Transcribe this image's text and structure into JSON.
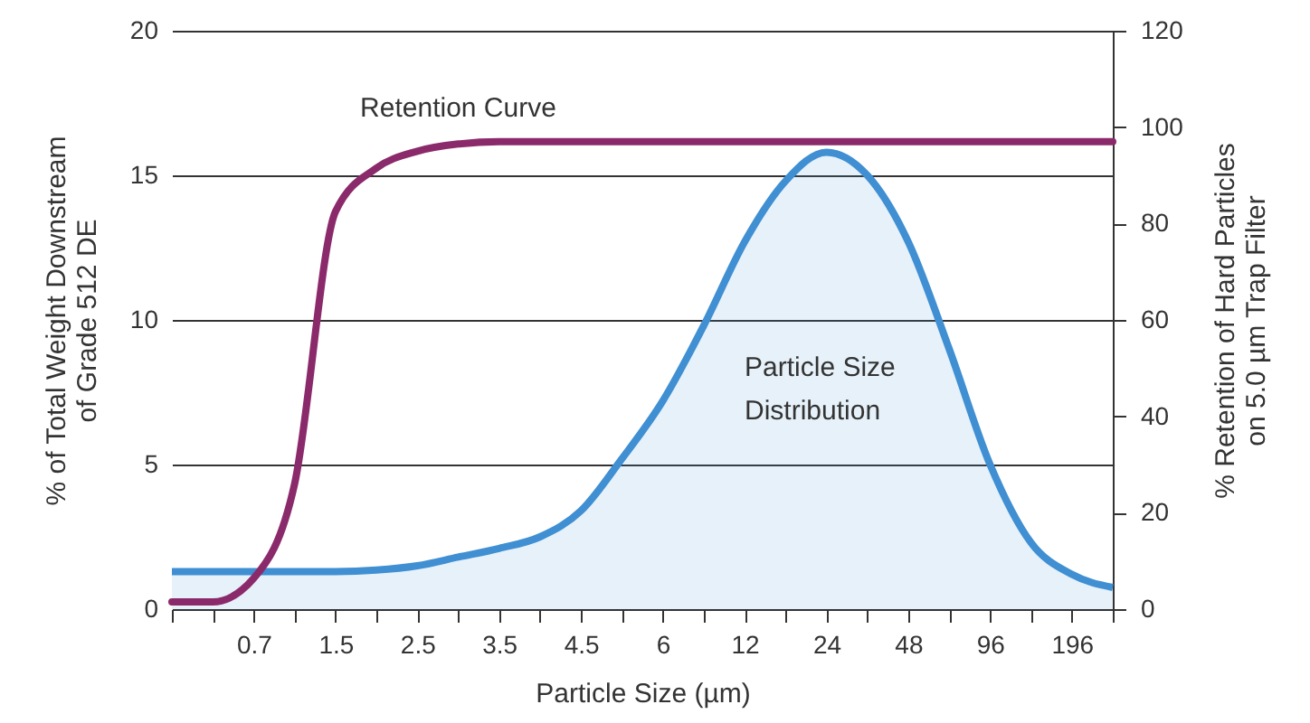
{
  "chart_data": {
    "type": "line",
    "xlabel": "Particle Size (µm)",
    "ylabel": "% of Total Weight Downstream\nof Grade 512 DE",
    "y2label": "% Retention of Hard Particles\non 5.0 µm Trap Filter",
    "categories": [
      null,
      null,
      "0.7",
      null,
      "1.5",
      null,
      "2.5",
      null,
      "3.5",
      null,
      "4.5",
      null,
      "6",
      null,
      "12",
      null,
      "24",
      null,
      "48",
      null,
      "96",
      null,
      "196",
      null
    ],
    "series": [
      {
        "name": "Particle Size Distribution",
        "type": "area",
        "color": "#3f8fd2",
        "values": [
          1.3,
          1.3,
          1.3,
          1.3,
          1.3,
          1.35,
          1.5,
          1.8,
          2.1,
          2.5,
          3.4,
          5.2,
          7.2,
          9.8,
          12.7,
          14.8,
          15.8,
          15.0,
          12.7,
          9.0,
          5.0,
          2.3,
          1.2,
          0.75
        ]
      },
      {
        "name": "Retention Curve",
        "type": "line",
        "axis": "y2",
        "color": "#8b2a6b",
        "values": [
          1.5,
          1.5,
          6.4,
          26,
          82.5,
          91.5,
          95,
          96.5,
          97,
          97,
          97,
          97,
          97,
          97,
          97,
          97,
          97,
          97,
          97,
          97,
          97,
          97,
          97,
          97
        ]
      }
    ],
    "ylim": [
      0,
      20
    ],
    "yticks": [
      0,
      5,
      10,
      15,
      20
    ],
    "y2lim": [
      0,
      120
    ],
    "y2ticks": [
      0,
      20,
      40,
      60,
      80,
      100,
      120
    ],
    "grid": "y"
  }
}
